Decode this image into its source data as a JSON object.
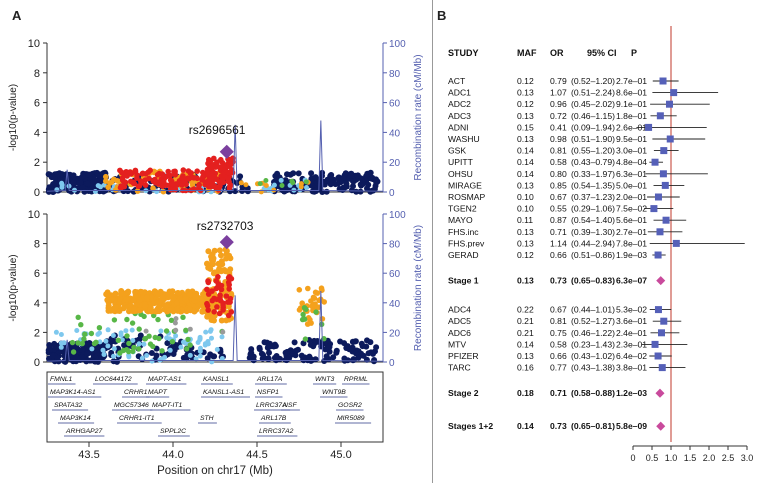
{
  "panel_a": {
    "label": "A",
    "y_left_label": "-log10(p-value)",
    "y_right_label": "Recombination rate (cM/Mb)",
    "x_label": "Position on chr17 (Mb)",
    "x_ticks": [
      "43.5",
      "44.0",
      "44.5",
      "45.0"
    ],
    "y_left_ticks": [
      "0",
      "2",
      "4",
      "6",
      "8",
      "10"
    ],
    "y_right_ticks": [
      "0",
      "20",
      "40",
      "60",
      "80",
      "100"
    ],
    "top_snp": "rs2696561",
    "bottom_snp": "rs2732703",
    "genes": {
      "row1": [
        "FMNL1",
        "LOC644172",
        "MAPT-AS1",
        "KANSL1",
        "ARL17A",
        "WNT3",
        "RPRML"
      ],
      "row2": [
        "MAP3K14-AS1",
        "CRHR1",
        "MAPT",
        "KANSL1-AS1",
        "NSFP1",
        "WNT9B"
      ],
      "row3": [
        "SPATA32",
        "MGC57346",
        "MAPT-IT1",
        "LRRC37A",
        "NSF",
        "GOSR2"
      ],
      "row4": [
        "MAP3K14",
        "CRHR1-IT1",
        "STH",
        "ARL17B",
        "MIR5089"
      ],
      "row5": [
        "ARHGAP27",
        "SPPL2C",
        "LRRC37A2"
      ]
    }
  },
  "panel_b": {
    "label": "B",
    "headers": {
      "study": "STUDY",
      "maf": "MAF",
      "or": "OR",
      "ci": "95% CI",
      "p": "P"
    },
    "x_ticks": [
      "0",
      "0.5",
      "1.0",
      "1.5",
      "2.0",
      "2.5",
      "3.0"
    ]
  },
  "chart_data": [
    {
      "type": "scatter",
      "title": "",
      "xlabel": "Position on chr17 (Mb)",
      "ylabel": "-log10(p-value)",
      "y2label": "Recombination rate (cM/Mb)",
      "xlim": [
        43.25,
        45.25
      ],
      "ylim": [
        0,
        10
      ],
      "y2lim": [
        0,
        100
      ],
      "annotation": {
        "snp": "rs2696561",
        "x": 44.32,
        "y": 2.7
      },
      "recombination_peaks": [
        {
          "x": 43.37,
          "y2": 15
        },
        {
          "x": 44.37,
          "y2": 45
        },
        {
          "x": 44.88,
          "y2": 48
        }
      ]
    },
    {
      "type": "scatter",
      "title": "",
      "xlabel": "Position on chr17 (Mb)",
      "ylabel": "-log10(p-value)",
      "y2label": "Recombination rate (cM/Mb)",
      "xlim": [
        43.25,
        45.25
      ],
      "ylim": [
        0,
        10
      ],
      "y2lim": [
        0,
        100
      ],
      "annotation": {
        "snp": "rs2732703",
        "x": 44.32,
        "y": 8.1
      },
      "recombination_peaks": [
        {
          "x": 43.37,
          "y2": 15
        },
        {
          "x": 44.37,
          "y2": 45
        },
        {
          "x": 44.88,
          "y2": 48
        }
      ]
    },
    {
      "type": "table",
      "title": "",
      "xlim": [
        0,
        3.0
      ],
      "reference_line": 1.0,
      "groups": [
        {
          "rows": [
            {
              "study": "ACT",
              "maf": "0.12",
              "or": 0.79,
              "ci_text": "(0.52–1.20)",
              "lo": 0.52,
              "hi": 1.2,
              "p": "2.7e–01"
            },
            {
              "study": "ADC1",
              "maf": "0.13",
              "or": 1.07,
              "ci_text": "(0.51–2.24)",
              "lo": 0.51,
              "hi": 2.24,
              "p": "8.6e–01"
            },
            {
              "study": "ADC2",
              "maf": "0.12",
              "or": 0.96,
              "ci_text": "(0.45–2.02)",
              "lo": 0.45,
              "hi": 2.02,
              "p": "9.1e–01"
            },
            {
              "study": "ADC3",
              "maf": "0.13",
              "or": 0.72,
              "ci_text": "(0.46–1.15)",
              "lo": 0.46,
              "hi": 1.15,
              "p": "1.8e–01"
            },
            {
              "study": "ADNI",
              "maf": "0.15",
              "or": 0.41,
              "ci_text": "(0.09–1.94)",
              "lo": 0.09,
              "hi": 1.94,
              "p": "2.6e–01"
            },
            {
              "study": "WASHU",
              "maf": "0.13",
              "or": 0.98,
              "ci_text": "(0.51–1.90)",
              "lo": 0.51,
              "hi": 1.9,
              "p": "9.5e–01"
            },
            {
              "study": "GSK",
              "maf": "0.14",
              "or": 0.81,
              "ci_text": "(0.55–1.20)",
              "lo": 0.55,
              "hi": 1.2,
              "p": "3.0e–01"
            },
            {
              "study": "UPITT",
              "maf": "0.14",
              "or": 0.58,
              "ci_text": "(0.43–0.79)",
              "lo": 0.43,
              "hi": 0.79,
              "p": "4.8e–04"
            },
            {
              "study": "OHSU",
              "maf": "0.14",
              "or": 0.8,
              "ci_text": "(0.33–1.97)",
              "lo": 0.33,
              "hi": 1.97,
              "p": "6.3e–01"
            },
            {
              "study": "MIRAGE",
              "maf": "0.13",
              "or": 0.85,
              "ci_text": "(0.54–1.35)",
              "lo": 0.54,
              "hi": 1.35,
              "p": "5.0e–01"
            },
            {
              "study": "ROSMAP",
              "maf": "0.10",
              "or": 0.67,
              "ci_text": "(0.37–1.23)",
              "lo": 0.37,
              "hi": 1.23,
              "p": "2.0e–01"
            },
            {
              "study": "TGEN2",
              "maf": "0.10",
              "or": 0.55,
              "ci_text": "(0.29–1.06)",
              "lo": 0.29,
              "hi": 1.06,
              "p": "7.5e–02"
            },
            {
              "study": "MAYO",
              "maf": "0.11",
              "or": 0.87,
              "ci_text": "(0.54–1.40)",
              "lo": 0.54,
              "hi": 1.4,
              "p": "5.6e–01"
            },
            {
              "study": "FHS.inc",
              "maf": "0.13",
              "or": 0.71,
              "ci_text": "(0.39–1.30)",
              "lo": 0.39,
              "hi": 1.3,
              "p": "2.7e–01"
            },
            {
              "study": "FHS.prev",
              "maf": "0.13",
              "or": 1.14,
              "ci_text": "(0.44–2.94)",
              "lo": 0.44,
              "hi": 2.94,
              "p": "7.8e–01"
            },
            {
              "study": "GERAD",
              "maf": "0.12",
              "or": 0.66,
              "ci_text": "(0.51–0.86)",
              "lo": 0.51,
              "hi": 0.86,
              "p": "1.9e–03"
            }
          ],
          "summary": {
            "study": "Stage 1",
            "maf": "0.13",
            "or": 0.73,
            "ci_text": "(0.65–0.83)",
            "lo": 0.65,
            "hi": 0.83,
            "p": "6.3e–07"
          }
        },
        {
          "rows": [
            {
              "study": "ADC4",
              "maf": "0.22",
              "or": 0.67,
              "ci_text": "(0.44–1.01)",
              "lo": 0.44,
              "hi": 1.01,
              "p": "5.3e–02"
            },
            {
              "study": "ADC5",
              "maf": "0.21",
              "or": 0.81,
              "ci_text": "(0.52–1.27)",
              "lo": 0.52,
              "hi": 1.27,
              "p": "3.6e–01"
            },
            {
              "study": "ADC6",
              "maf": "0.21",
              "or": 0.75,
              "ci_text": "(0.46–1.22)",
              "lo": 0.46,
              "hi": 1.22,
              "p": "2.4e–01"
            },
            {
              "study": "MTV",
              "maf": "0.14",
              "or": 0.58,
              "ci_text": "(0.23–1.43)",
              "lo": 0.23,
              "hi": 1.43,
              "p": "2.3e–01"
            },
            {
              "study": "PFIZER",
              "maf": "0.13",
              "or": 0.66,
              "ci_text": "(0.43–1.02)",
              "lo": 0.43,
              "hi": 1.02,
              "p": "6.4e–02"
            },
            {
              "study": "TARC",
              "maf": "0.16",
              "or": 0.77,
              "ci_text": "(0.43–1.38)",
              "lo": 0.43,
              "hi": 1.38,
              "p": "3.8e–01"
            }
          ],
          "summary": {
            "study": "Stage 2",
            "maf": "0.18",
            "or": 0.71,
            "ci_text": "(0.58–0.88)",
            "lo": 0.58,
            "hi": 0.88,
            "p": "1.2e–03"
          }
        },
        {
          "rows": [],
          "summary": {
            "study": "Stages 1+2",
            "maf": "0.14",
            "or": 0.73,
            "ci_text": "(0.65–0.81)",
            "lo": 0.65,
            "hi": 0.81,
            "p": "5.8e–09"
          }
        }
      ]
    }
  ],
  "colors": {
    "navy": "#0c1a5c",
    "lightblue": "#7ec8ee",
    "green": "#58b747",
    "orange": "#f4a11d",
    "red": "#e4201f",
    "purple": "#7b3f9e",
    "gray": "#9a9a9a",
    "recomb": "#5560b0",
    "forest_box": "#5560b8",
    "diamond": "#c94a9c",
    "refline": "#c0392b"
  }
}
